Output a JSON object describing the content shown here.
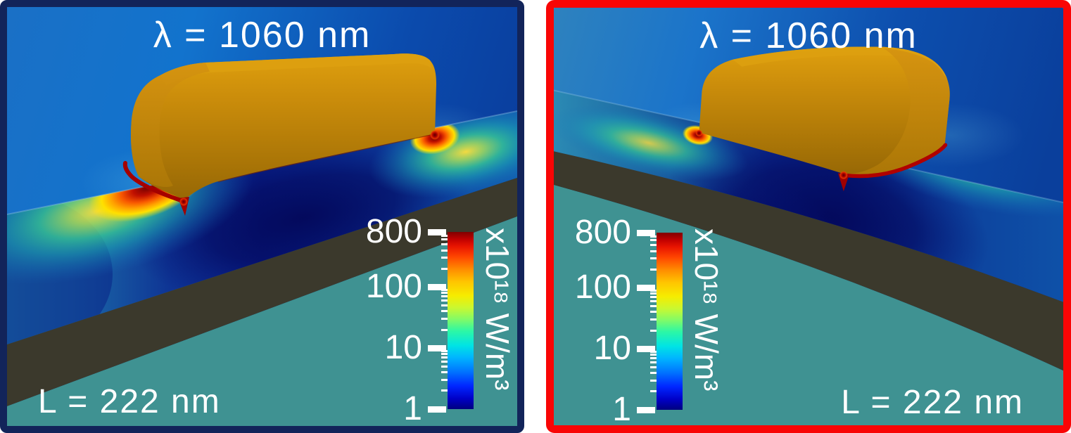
{
  "figure": {
    "background": "#ffffff"
  },
  "panels": [
    {
      "name": "left",
      "border_color": "#12245a",
      "title": "λ = 1060 nm",
      "length_label": "L = 222 nm",
      "colorbar": {
        "unit": "x10¹⁸ W/m³",
        "scale": "log",
        "min": 1,
        "max": 800,
        "ticks": [
          800,
          100,
          10,
          1
        ],
        "colormap": "jet"
      }
    },
    {
      "name": "right",
      "border_color": "#f90505",
      "title": "λ = 1060 nm",
      "length_label": "L = 222 nm",
      "colorbar": {
        "unit": "x10¹⁸ W/m³",
        "scale": "log",
        "min": 1,
        "max": 800,
        "ticks": [
          800,
          100,
          10,
          1
        ],
        "colormap": "jet"
      }
    }
  ],
  "chart_data": [
    {
      "type": "heatmap",
      "title": "λ = 1060 nm",
      "annotation": "L = 222 nm",
      "scene": "3D render: gold nanorod (long side view) on substrate; dissipated-power heat map on substrate surface with red-hot spots at both rod ends fading through yellow, green, cyan to dark blue shadow beneath the rod",
      "colorbar": {
        "unit": "x10¹⁸ W/m³",
        "scale": "log",
        "range": [
          1,
          800
        ],
        "ticks": [
          1,
          10,
          100,
          800
        ],
        "colormap": "jet",
        "position": "bottom-right"
      }
    },
    {
      "type": "heatmap",
      "title": "λ = 1060 nm",
      "annotation": "L = 222 nm",
      "scene": "3D render: same gold nanorod viewed toward its end cap; strongest red/yellow hot spot at the near end base, cyan glow on substrate, dark blue shadow under the rod",
      "colorbar": {
        "unit": "x10¹⁸ W/m³",
        "scale": "log",
        "range": [
          1,
          800
        ],
        "ticks": [
          1,
          10,
          100,
          800
        ],
        "colormap": "jet",
        "position": "bottom-left"
      }
    }
  ]
}
